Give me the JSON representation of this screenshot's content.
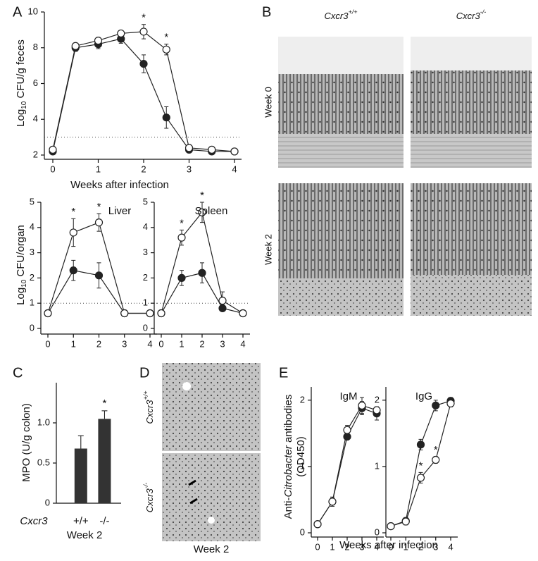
{
  "chart_data": [
    {
      "type": "line",
      "panel": "A",
      "ylabel": [
        {
          "text": "Log"
        },
        {
          "text": "10",
          "sub": true
        },
        {
          "text": " CFU/g feces"
        }
      ],
      "xlabel": "Weeks after infection",
      "x": [
        0,
        0.5,
        1,
        1.5,
        2,
        2.5,
        3,
        3.5,
        4
      ],
      "xlim": [
        0,
        4
      ],
      "xticks": [
        0,
        1,
        2,
        3,
        4
      ],
      "ylim": [
        2,
        10
      ],
      "yticks": [
        2,
        4,
        6,
        8,
        10
      ],
      "reference_line": 3,
      "series": [
        {
          "color": "#222222",
          "marker_fill": "#222222",
          "values": [
            2.2,
            8.0,
            8.2,
            8.5,
            7.1,
            4.1,
            2.3,
            2.2,
            2.2
          ],
          "errors": [
            0.1,
            0.2,
            0.25,
            0.25,
            0.5,
            0.6,
            0.1,
            0.05,
            0.05
          ]
        },
        {
          "color": "#222222",
          "marker_fill": "#ffffff",
          "values": [
            2.3,
            8.1,
            8.4,
            8.8,
            8.9,
            7.9,
            2.4,
            2.3,
            2.2
          ],
          "errors": [
            0.1,
            0.15,
            0.15,
            0.15,
            0.4,
            0.3,
            0.1,
            0.05,
            0.05
          ]
        }
      ],
      "annotations": [
        {
          "text": "*",
          "x": 2
        },
        {
          "text": "*",
          "x": 2.5
        }
      ]
    },
    {
      "type": "line",
      "title": "Liver",
      "ylabel": [
        {
          "text": "Log"
        },
        {
          "text": "10",
          "sub": true
        },
        {
          "text": " CFU/organ"
        }
      ],
      "x": [
        0,
        1,
        2,
        3,
        4
      ],
      "xlim": [
        0,
        4
      ],
      "xticks": [
        0,
        1,
        2,
        3,
        4
      ],
      "ylim": [
        0,
        5
      ],
      "yticks": [
        0,
        1,
        2,
        3,
        4,
        5
      ],
      "reference_line": 1,
      "series": [
        {
          "color": "#222222",
          "marker_fill": "#222222",
          "values": [
            0.6,
            2.3,
            2.1,
            0.6,
            0.6
          ],
          "errors": [
            0.05,
            0.4,
            0.5,
            0.05,
            0.05
          ]
        },
        {
          "color": "#222222",
          "marker_fill": "#ffffff",
          "values": [
            0.6,
            3.8,
            4.2,
            0.6,
            0.6
          ],
          "errors": [
            0.05,
            0.55,
            0.35,
            0.05,
            0.05
          ]
        }
      ],
      "annotations": [
        {
          "text": "*",
          "x": 1
        },
        {
          "text": "*",
          "x": 2
        }
      ]
    },
    {
      "type": "line",
      "title": "Spleen",
      "x": [
        0,
        1,
        2,
        3,
        4
      ],
      "xlim": [
        0,
        4
      ],
      "xticks": [
        0,
        1,
        2,
        3,
        4
      ],
      "ylim": [
        0,
        5
      ],
      "yticks": [
        0,
        1,
        2,
        3,
        4,
        5
      ],
      "reference_line": 1,
      "series": [
        {
          "color": "#222222",
          "marker_fill": "#222222",
          "values": [
            0.6,
            2.0,
            2.2,
            0.8,
            0.6
          ],
          "errors": [
            0.05,
            0.3,
            0.4,
            0.1,
            0.05
          ]
        },
        {
          "color": "#222222",
          "marker_fill": "#ffffff",
          "values": [
            0.6,
            3.6,
            4.6,
            1.1,
            0.6
          ],
          "errors": [
            0.05,
            0.3,
            0.4,
            0.35,
            0.05
          ]
        }
      ],
      "annotations": [
        {
          "text": "*",
          "x": 1
        },
        {
          "text": "*",
          "x": 2
        }
      ]
    },
    {
      "type": "bar",
      "panel": "C",
      "ylabel": [
        {
          "text": "MPO (U/g colon)"
        }
      ],
      "categories": [
        "+/+",
        "-/-"
      ],
      "category_title": "Cxcr3",
      "xlabel": "Week 2",
      "values": [
        0.68,
        1.05
      ],
      "errors": [
        0.16,
        0.1
      ],
      "color": "#333333",
      "ylim": [
        0,
        1.5
      ],
      "yticks": [
        0,
        0.5,
        {
          "value": 1,
          "label": "1.0"
        }
      ],
      "annotations": [
        {
          "text": "*",
          "category": 1
        }
      ]
    },
    {
      "type": "line",
      "panel": "E",
      "title": "IgM",
      "ylabel": [
        {
          "text": "Anti-"
        },
        {
          "text": "Citrobacter",
          "italic": true
        },
        {
          "text": " antibodies"
        }
      ],
      "ylabel2": "(OD450)",
      "xlabel": "Weeks after infection",
      "x": [
        0,
        1,
        2,
        3,
        4
      ],
      "xlim": [
        0,
        4
      ],
      "xticks": [
        0,
        1,
        2,
        3,
        4
      ],
      "ylim": [
        0,
        2.2
      ],
      "yticks": [
        0,
        1,
        2
      ],
      "series": [
        {
          "color": "#222222",
          "marker_fill": "#222222",
          "values": [
            0.13,
            0.47,
            1.45,
            1.88,
            1.8
          ],
          "errors": [
            0.03,
            0.05,
            0.05,
            0.1,
            0.1
          ]
        },
        {
          "color": "#222222",
          "marker_fill": "#ffffff",
          "values": [
            0.13,
            0.47,
            1.55,
            1.92,
            1.85
          ],
          "errors": [
            0.03,
            0.07,
            0.07,
            0.12,
            0.05
          ]
        }
      ]
    },
    {
      "type": "line",
      "title": "IgG",
      "x": [
        0,
        1,
        2,
        3,
        4
      ],
      "xlim": [
        0,
        4
      ],
      "xticks": [
        0,
        1,
        2,
        3,
        4
      ],
      "ylim": [
        0,
        2.2
      ],
      "yticks": [
        0,
        1,
        2
      ],
      "series": [
        {
          "color": "#222222",
          "marker_fill": "#222222",
          "values": [
            0.1,
            0.18,
            1.33,
            1.92,
            1.99
          ],
          "errors": [
            0.03,
            0.05,
            0.08,
            0.08,
            0.05
          ]
        },
        {
          "color": "#222222",
          "marker_fill": "#ffffff",
          "values": [
            0.1,
            0.17,
            0.83,
            1.1,
            1.95
          ],
          "errors": [
            0.03,
            0.05,
            0.08,
            0.05,
            0.05
          ]
        }
      ],
      "annotations": [
        {
          "text": "*",
          "x": 2
        },
        {
          "text": "*",
          "x": 3
        }
      ]
    }
  ],
  "figure": {
    "B": {
      "panel": "B",
      "columns": [
        {
          "text": "Cxcr3",
          "sup": "+/+"
        },
        {
          "text": "Cxcr3",
          "sup": "-/-"
        }
      ],
      "rows": [
        "Week 0",
        "Week 2"
      ]
    },
    "D": {
      "panel": "D",
      "rows": [
        {
          "text": "Cxcr3",
          "sup": "+/+"
        },
        {
          "text": "Cxcr3",
          "sup": "-/-"
        }
      ],
      "caption": "Week 2"
    }
  }
}
